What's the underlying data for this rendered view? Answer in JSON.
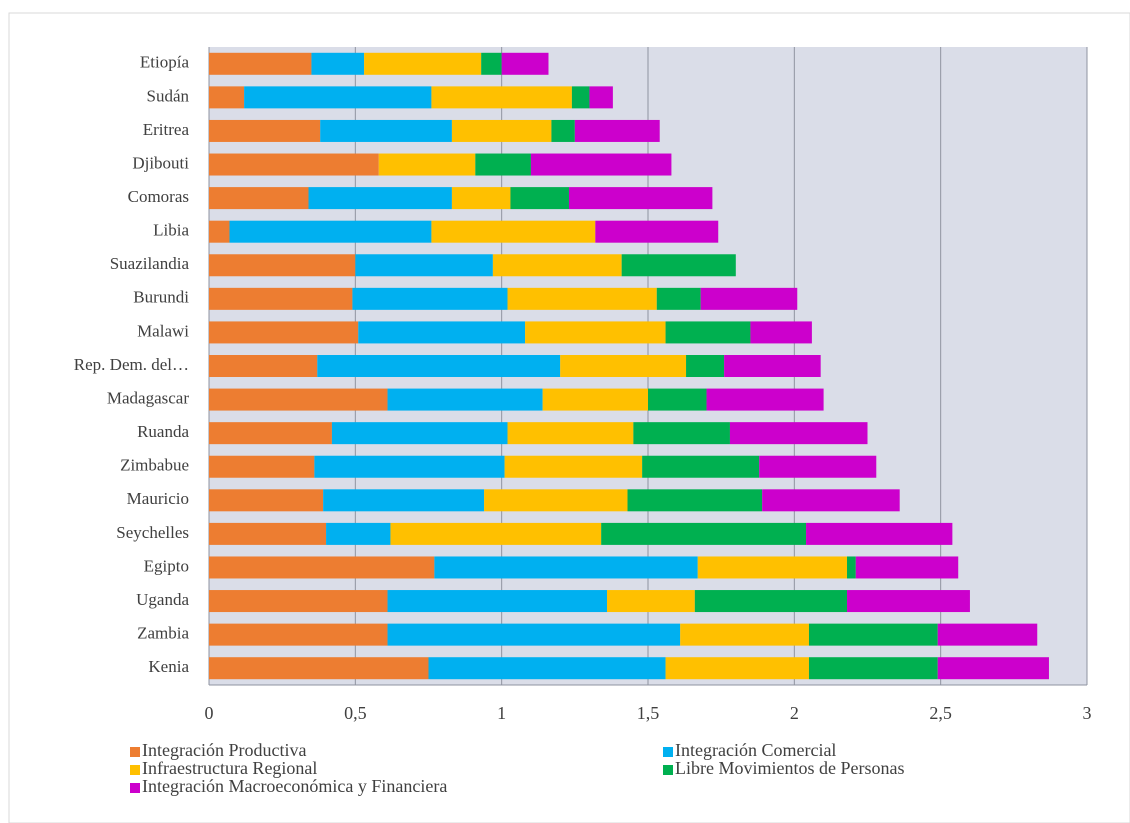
{
  "chart_data": {
    "type": "stacked-bar-horizontal",
    "categories": [
      "Etiopía",
      "Sudán",
      "Eritrea",
      "Djibouti",
      "Comoras",
      "Libia",
      "Suazilandia",
      "Burundi",
      "Malawi",
      "Rep. Dem. del…",
      "Madagascar",
      "Ruanda",
      "Zimbabue",
      "Mauricio",
      "Seychelles",
      "Egipto",
      "Uganda",
      "Zambia",
      "Kenia"
    ],
    "series": [
      {
        "name": "Integración Productiva",
        "color": "#ed7d31",
        "values": [
          0.35,
          0.12,
          0.38,
          0.58,
          0.34,
          0.07,
          0.5,
          0.49,
          0.51,
          0.37,
          0.61,
          0.42,
          0.36,
          0.39,
          0.4,
          0.77,
          0.61,
          0.61,
          0.75
        ]
      },
      {
        "name": "Integración Comercial",
        "color": "#00b0f0",
        "values": [
          0.18,
          0.64,
          0.45,
          0.0,
          0.49,
          0.69,
          0.47,
          0.53,
          0.57,
          0.83,
          0.53,
          0.6,
          0.65,
          0.55,
          0.22,
          0.9,
          0.75,
          1.0,
          0.81
        ]
      },
      {
        "name": "Infraestructura Regional",
        "color": "#ffc000",
        "values": [
          0.4,
          0.48,
          0.34,
          0.33,
          0.2,
          0.56,
          0.44,
          0.51,
          0.48,
          0.43,
          0.36,
          0.43,
          0.47,
          0.49,
          0.72,
          0.51,
          0.3,
          0.44,
          0.49
        ]
      },
      {
        "name": "Libre Movimientos de Personas",
        "color": "#00b050",
        "values": [
          0.07,
          0.06,
          0.08,
          0.19,
          0.2,
          0.0,
          0.39,
          0.15,
          0.29,
          0.13,
          0.2,
          0.33,
          0.4,
          0.46,
          0.7,
          0.03,
          0.52,
          0.44,
          0.44
        ]
      },
      {
        "name": "Integración Macroeconómica y Financiera",
        "color": "#cc00cc",
        "values": [
          0.16,
          0.08,
          0.29,
          0.48,
          0.49,
          0.42,
          0.0,
          0.33,
          0.21,
          0.33,
          0.4,
          0.47,
          0.4,
          0.47,
          0.5,
          0.35,
          0.42,
          0.34,
          0.38
        ]
      }
    ],
    "xlim": [
      0,
      3
    ],
    "xticks": [
      0,
      {
        "value": 0.5,
        "label": "0,5"
      },
      1,
      {
        "value": 1.5,
        "label": "1,5"
      },
      2,
      {
        "value": 2.5,
        "label": "2,5"
      },
      3
    ],
    "grid": true,
    "legend": "bottom"
  }
}
